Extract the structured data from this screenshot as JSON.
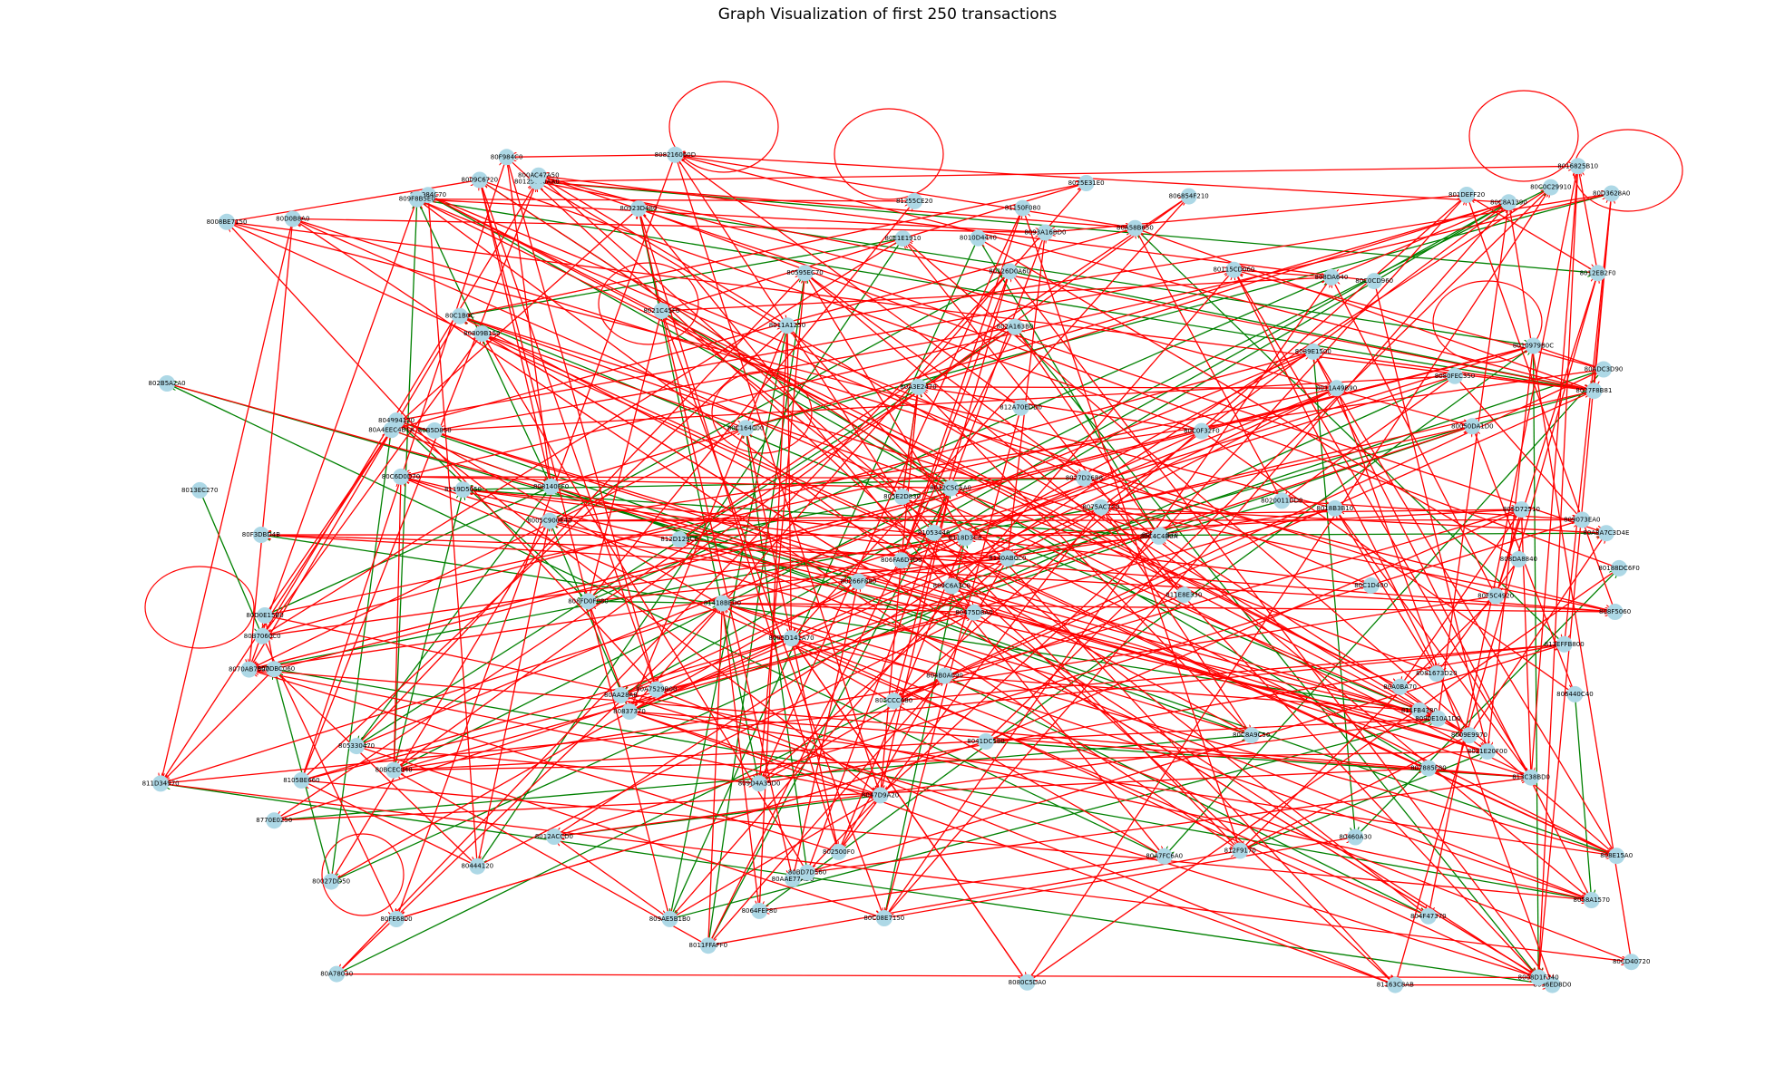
{
  "title": "Graph Visualization of first 250 transactions",
  "colors": {
    "node": "#add8e6",
    "edge_red": "#ff0000",
    "edge_green": "#008000",
    "label": "#000000"
  },
  "nodes": [
    "805E2D830",
    "8047D9A20",
    "808140FF0",
    "806440C40",
    "8081673D20",
    "809C6A3C0",
    "812A70EDD0",
    "80C6D0D70",
    "8010D4440",
    "802B5A2A0",
    "80AAE77AD0",
    "8058A1570",
    "809073EA0",
    "80ECF8970",
    "8018B3B10",
    "81418BED0",
    "80B5D850",
    "8036ED8D0",
    "8105BE660",
    "8140AB0C0",
    "81053446",
    "805CCC680",
    "811E8E330",
    "806854F210",
    "8080C5DA0",
    "8012ACCD0",
    "811D34970",
    "80D3628A0",
    "808216060D",
    "812F9170",
    "8009E9970",
    "8770E0250",
    "80E1E1910",
    "8119D5050",
    "8010979B0C",
    "8005D141A70",
    "8007DBC060",
    "8025E31E0",
    "8089E1500",
    "80C164000",
    "811FB4380",
    "806FA6D7D0",
    "8090E10A1D0",
    "804994120",
    "8011FFAFF0",
    "80A7529B00",
    "813EFFB800",
    "802500F0",
    "80027DD50",
    "80ADC3D90",
    "8016825B10",
    "812D129C0",
    "8009C6720",
    "8008D1F340",
    "8011A49B90",
    "805D72510",
    "80923D480",
    "805330470",
    "8005C900E40",
    "80444120",
    "813C38BD0",
    "81255CE20",
    "808F5060",
    "802A163B0",
    "801DEFF20",
    "80266F880",
    "8075AC7C0",
    "80595EC70",
    "80475D8A0",
    "8027F8B81",
    "8027D26B8",
    "80FE6800",
    "804F47370",
    "8021C45F0",
    "80C0F32F0",
    "80C0C29910",
    "8041DC580",
    "80D0E15B0",
    "8011A1250",
    "804B0A090",
    "80188DC6F0",
    "80460A30",
    "8020011DD0",
    "8008BE7150",
    "80837370",
    "8070AB7590",
    "80AA28A8",
    "8012EB2F0",
    "80A78030",
    "80BCEC040",
    "80125660AA0",
    "809D4A35D0",
    "809AE5B1B0",
    "80A3E2470",
    "80F984C70",
    "80050DA1D0",
    "8093A16BD0",
    "80A0BA70",
    "80C1D400",
    "80F984C0",
    "808DA8840",
    "80CD40720",
    "80809B150",
    "807885F80",
    "8021E20F00",
    "80126D0A60",
    "809F8B5E0",
    "80A7FC6A0",
    "808FD0F080",
    "80B7060C0",
    "80A58B650",
    "8064FEF80",
    "808E15A0",
    "80115CD060",
    "80F5C4920",
    "81150F080",
    "80C0CD960",
    "80A4EEC4B1A",
    "81163C8AB",
    "80C08E7150",
    "8118D3C8",
    "80C4C4B0A",
    "8013EC270",
    "8012C5C5A0",
    "80F3DBD4B",
    "80BD7D560",
    "80A8A7C3D4E",
    "80C8A1390",
    "8080FEC350",
    "80C1B0C",
    "800AC47A50",
    "80D0B8A0",
    "80C8A9C50",
    "808DA640"
  ],
  "edges_red": 320,
  "edges_green": 70
}
